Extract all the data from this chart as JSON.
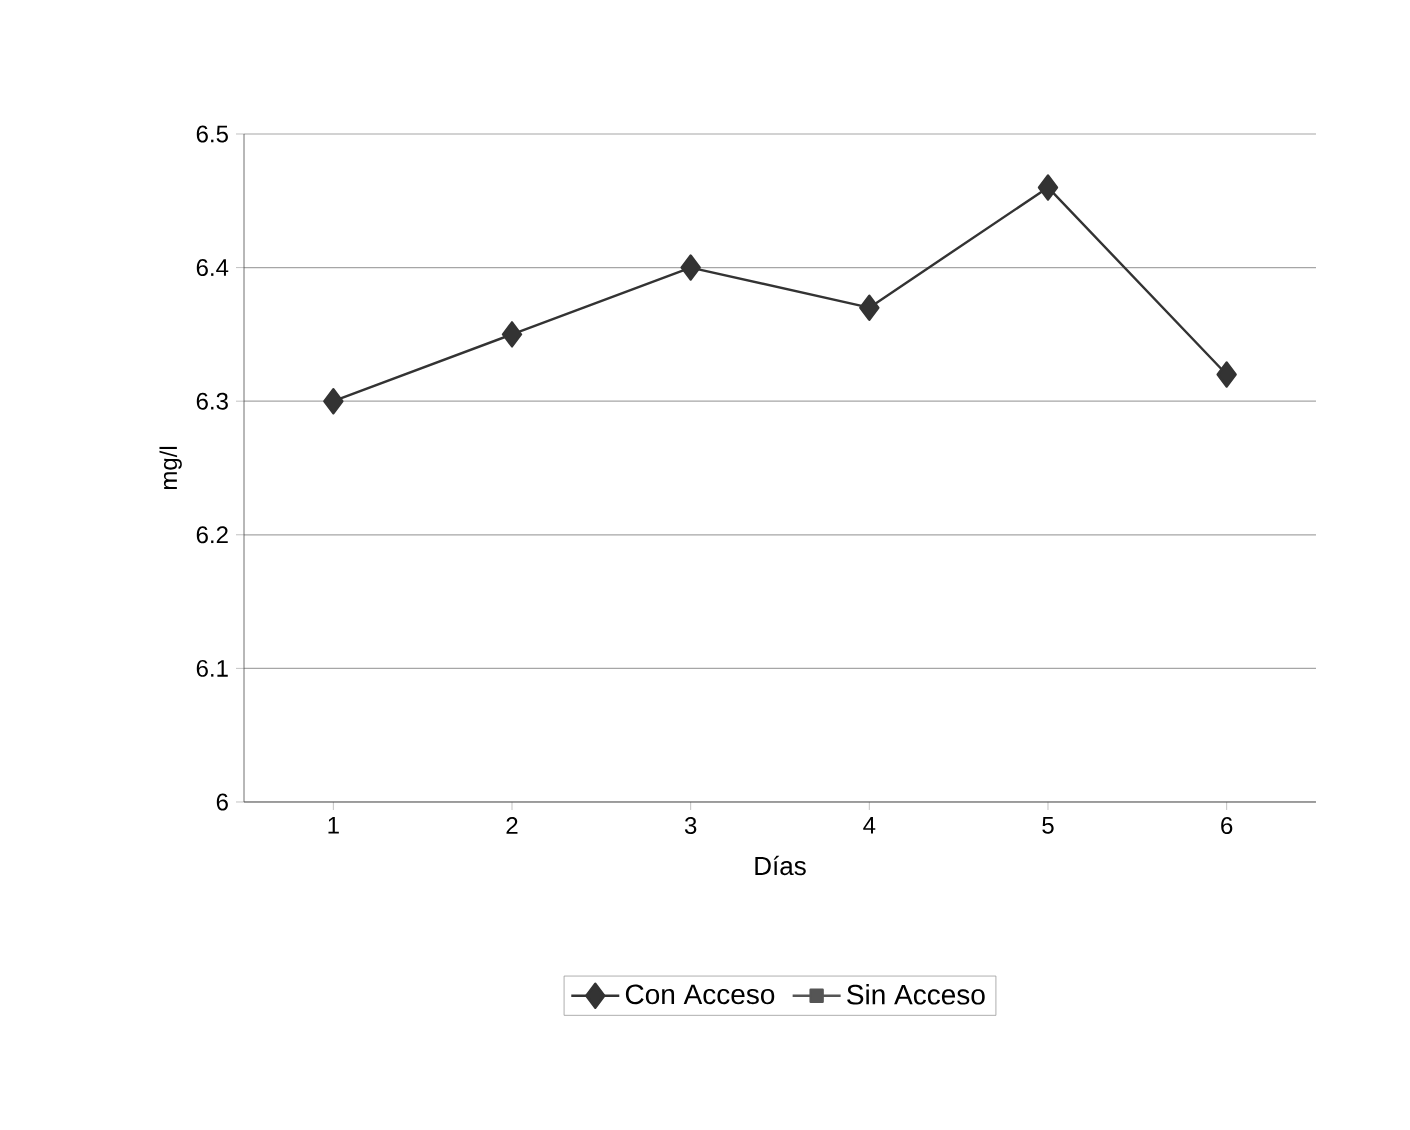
{
  "chart_data": {
    "type": "line",
    "xlabel": "Días",
    "ylabel": "mg/l",
    "categories": [
      "1",
      "2",
      "3",
      "4",
      "5",
      "6"
    ],
    "series": [
      {
        "name": "Con Acceso",
        "color": "#333333",
        "marker": "diamond",
        "values": [
          6.3,
          6.35,
          6.4,
          6.37,
          6.46,
          6.32
        ]
      },
      {
        "name": "Sin Acceso",
        "color": "#555555",
        "marker": "square",
        "values": [
          null,
          null,
          null,
          null,
          null,
          null
        ]
      }
    ],
    "ylim": [
      6,
      6.5
    ],
    "yticks": [
      6,
      6.1,
      6.2,
      6.3,
      6.4,
      6.5
    ],
    "grid": "y",
    "legend": "bottom",
    "line_style": "solid"
  }
}
